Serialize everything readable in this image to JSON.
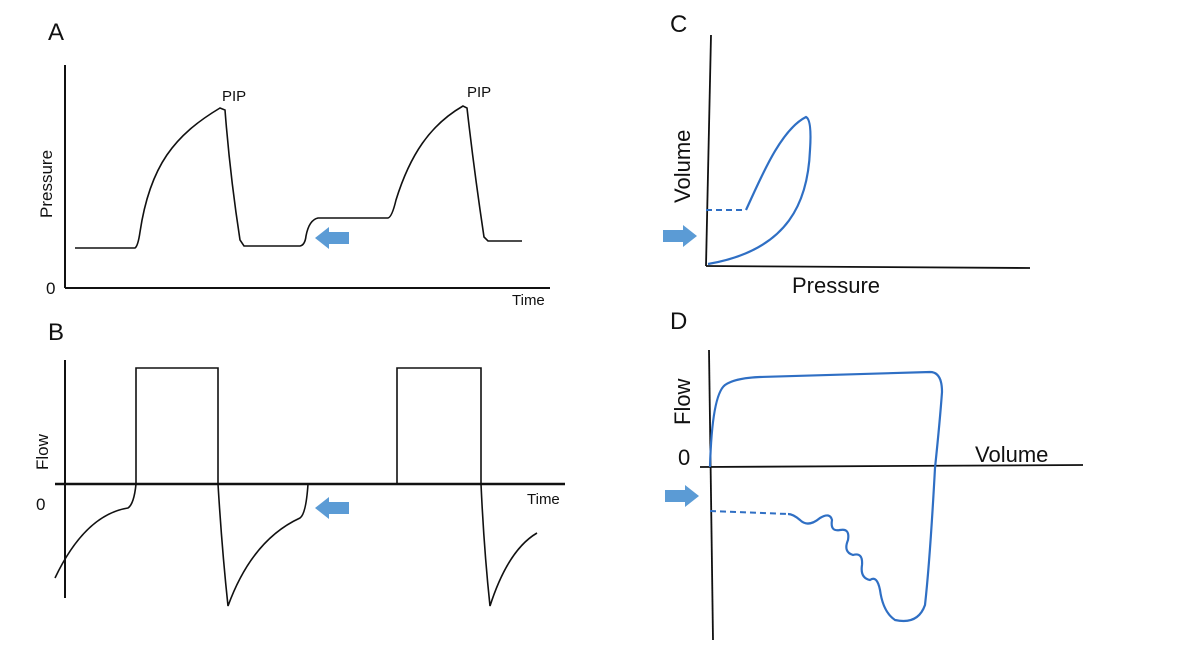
{
  "panels": {
    "a": {
      "letter": "A",
      "ylabel": "Pressure",
      "xlabel": "Time",
      "zero": "0",
      "peak_label_1": "PIP",
      "peak_label_2": "PIP"
    },
    "b": {
      "letter": "B",
      "ylabel": "Flow",
      "xlabel": "Time",
      "zero": "0"
    },
    "c": {
      "letter": "C",
      "ylabel": "Volume",
      "xlabel": "Pressure"
    },
    "d": {
      "letter": "D",
      "ylabel": "Flow",
      "xlabel": "Volume",
      "zero": "0"
    }
  },
  "colors": {
    "trace_black": "#111111",
    "trace_blue": "#2f6fc4",
    "arrow": "#5b9bd5"
  },
  "icons": {
    "indicator": "arrow-icon"
  }
}
